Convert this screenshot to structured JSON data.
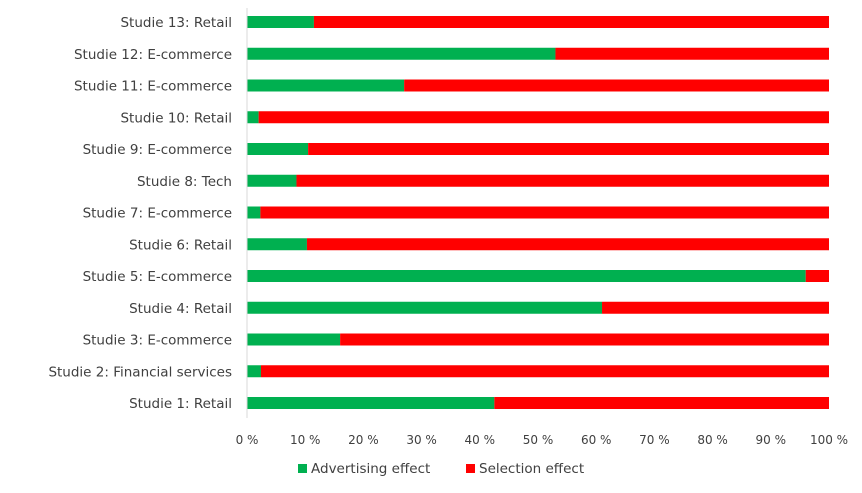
{
  "chart_data": {
    "type": "bar",
    "orientation": "horizontal",
    "stacked": "percent",
    "categories": [
      "Studie 13: Retail",
      "Studie 12: E-commerce",
      "Studie 11: E-commerce",
      "Studie 10: Retail",
      "Studie 9: E-commerce",
      "Studie 8: Tech",
      "Studie 7: E-commerce",
      "Studie 6: Retail",
      "Studie 5: E-commerce",
      "Studie 4: Retail",
      "Studie 3: E-commerce",
      "Studie 2: Financial services",
      "Studie 1: Retail"
    ],
    "series": [
      {
        "name": "Advertising effect",
        "color": "#00B050",
        "values": [
          11.5,
          53,
          27,
          2,
          10.5,
          8.5,
          2.3,
          10.3,
          96,
          61,
          16,
          2.4,
          42.5
        ]
      },
      {
        "name": "Selection effect",
        "color": "#FF0000",
        "values": [
          88.5,
          47,
          73,
          98,
          89.5,
          91.5,
          97.7,
          89.7,
          4,
          39,
          84,
          97.6,
          57.5
        ]
      }
    ],
    "x_ticks": [
      "0 %",
      "10 %",
      "20 %",
      "30 %",
      "40 %",
      "50 %",
      "60 %",
      "70 %",
      "80 %",
      "90 %",
      "100 %"
    ],
    "xlim": [
      0,
      100
    ],
    "grid": false,
    "legend_position": "bottom"
  }
}
